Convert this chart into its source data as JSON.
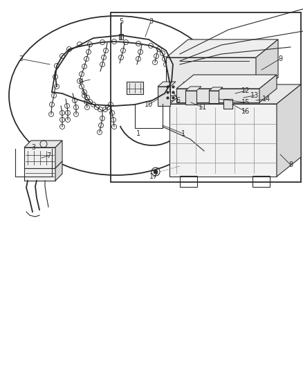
{
  "bg_color": "#ffffff",
  "line_color": "#2a2a2a",
  "light_line": "#888888",
  "gray_fill": "#d8d8d8",
  "light_gray": "#e8e8e8",
  "figsize": [
    4.38,
    5.33
  ],
  "dpi": 100
}
